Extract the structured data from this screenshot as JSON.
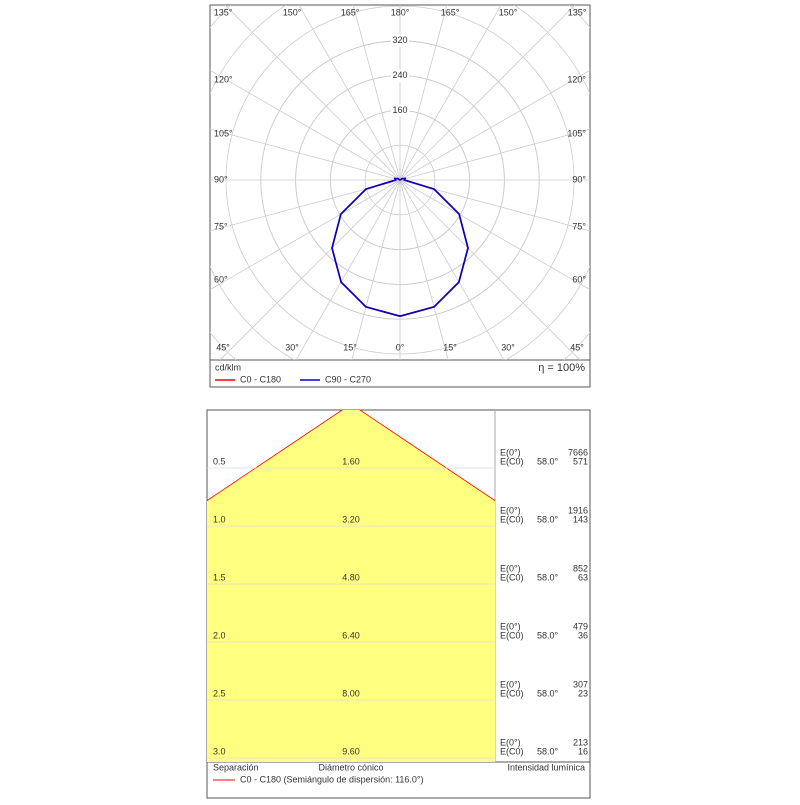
{
  "chart_data": [
    {
      "type": "polar",
      "unit_label": "cd/klm",
      "efficiency_label": "η = 100%",
      "angle_labels": {
        "top": [
          "135°",
          "150°",
          "165°",
          "180°",
          "165°",
          "150°",
          "135°"
        ],
        "left": [
          "120°",
          "105°",
          "90°",
          "75°",
          "60°"
        ],
        "right": [
          "120°",
          "105°",
          "90°",
          "75°",
          "60°"
        ],
        "bottom": [
          "45°",
          "30°",
          "15°",
          "0°",
          "15°",
          "30°",
          "45°"
        ]
      },
      "rlim": [
        0,
        400
      ],
      "rticks": [
        160,
        240,
        320
      ],
      "x": [
        0,
        15,
        30,
        45,
        60,
        75,
        90,
        105,
        120,
        135,
        150,
        165,
        180
      ],
      "series": [
        {
          "name": "C0 - C180",
          "color": "#ff0000",
          "values": [
            313,
            302,
            271,
            221,
            157,
            81,
            10,
            12,
            6,
            0,
            0,
            0,
            0
          ]
        },
        {
          "name": "C90 - C270",
          "color": "#0000cc",
          "values": [
            313,
            302,
            271,
            221,
            157,
            81,
            10,
            12,
            6,
            0,
            0,
            0,
            0
          ]
        }
      ]
    },
    {
      "type": "cone",
      "distances": [
        {
          "value": 0.5,
          "label": "0.5"
        },
        {
          "value": 1,
          "label": "1.0"
        },
        {
          "value": 1.5,
          "label": "1.5"
        },
        {
          "value": 2,
          "label": "2.0"
        },
        {
          "value": 2.5,
          "label": "2.5"
        },
        {
          "value": 3,
          "label": "3.0"
        }
      ],
      "diameters": [
        {
          "value": 1.6,
          "label": "1.60"
        },
        {
          "value": 3.2,
          "label": "3.20"
        },
        {
          "value": 4.8,
          "label": "4.80"
        },
        {
          "value": 6.4,
          "label": "6.40"
        },
        {
          "value": 8,
          "label": "8.00"
        },
        {
          "value": 9.6,
          "label": "9.60"
        }
      ],
      "e0_label": "E(0°)",
      "ec0_label": "E(C0)",
      "angle_labels": [
        "58.0°",
        "58.0°",
        "58.0°",
        "58.0°",
        "58.0°",
        "58.0°"
      ],
      "e0_values": [
        7666,
        1916,
        852,
        479,
        307,
        213
      ],
      "ec0_values": [
        571,
        143,
        63,
        36,
        23,
        16
      ],
      "footer": [
        "Separación",
        "Diámetro cónico",
        "Intensidad lumínica"
      ],
      "legend": "C0 - C180 (Semiángulo de dispersión: 116.0°)",
      "color": "#ffff80",
      "edge_color": "#ff0000"
    }
  ]
}
